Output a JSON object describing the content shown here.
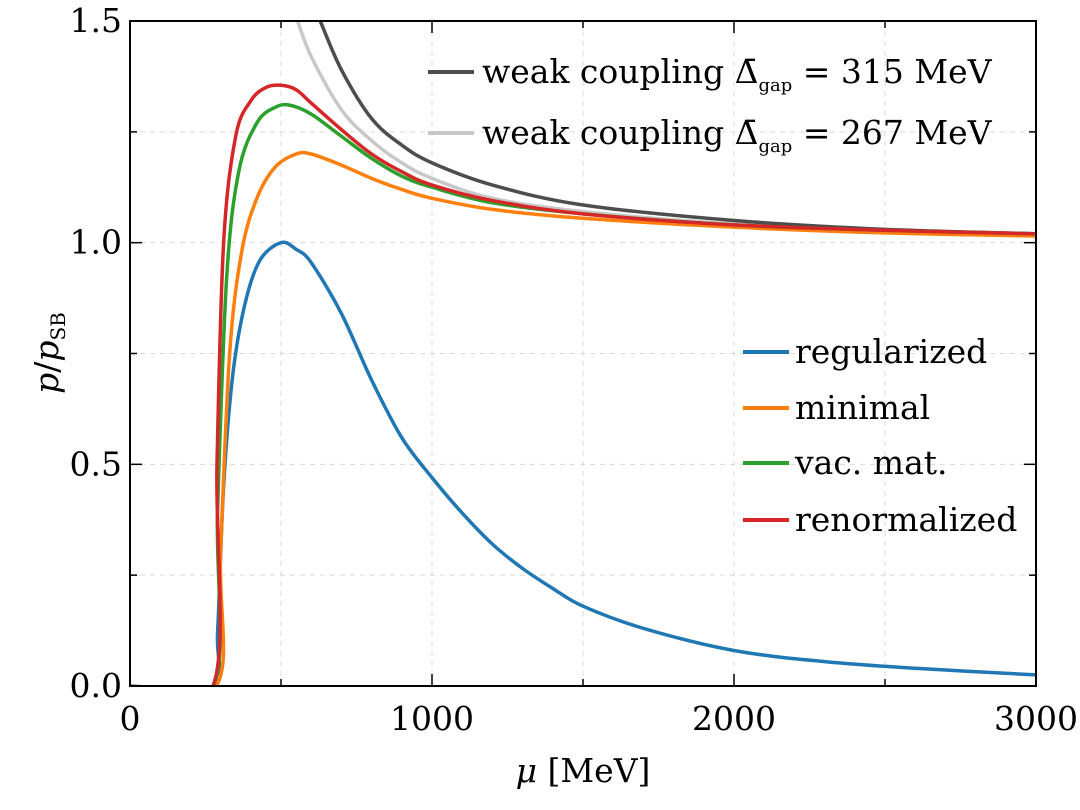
{
  "chart_data": {
    "type": "line",
    "xlabel": "μ [MeV]",
    "ylabel": "p/p_SB",
    "xlim": [
      0,
      3000
    ],
    "ylim": [
      0,
      1.5
    ],
    "xticks": [
      0,
      1000,
      2000,
      3000
    ],
    "xtick_labels": [
      "0",
      "1000",
      "2000",
      "3000"
    ],
    "yticks": [
      0.0,
      0.5,
      1.0,
      1.5
    ],
    "ytick_labels": [
      "0.0",
      "0.5",
      "1.0",
      "1.5"
    ],
    "grid": true,
    "series": [
      {
        "name": "regularized",
        "color": "#1f77b4",
        "points": [
          [
            0,
            0
          ],
          [
            275,
            0
          ],
          [
            290,
            0.12
          ],
          [
            310,
            0.45
          ],
          [
            340,
            0.7
          ],
          [
            380,
            0.86
          ],
          [
            430,
            0.96
          ],
          [
            500,
            1.0
          ],
          [
            550,
            0.985
          ],
          [
            600,
            0.955
          ],
          [
            700,
            0.84
          ],
          [
            800,
            0.69
          ],
          [
            900,
            0.56
          ],
          [
            1000,
            0.47
          ],
          [
            1100,
            0.39
          ],
          [
            1200,
            0.32
          ],
          [
            1300,
            0.265
          ],
          [
            1400,
            0.22
          ],
          [
            1500,
            0.18
          ],
          [
            1700,
            0.13
          ],
          [
            2000,
            0.08
          ],
          [
            2300,
            0.055
          ],
          [
            2600,
            0.04
          ],
          [
            3000,
            0.025
          ]
        ]
      },
      {
        "name": "minimal",
        "color": "#ff7f0e",
        "points": [
          [
            0,
            0
          ],
          [
            285,
            0
          ],
          [
            300,
            0.3
          ],
          [
            330,
            0.75
          ],
          [
            370,
            0.98
          ],
          [
            420,
            1.1
          ],
          [
            480,
            1.17
          ],
          [
            550,
            1.2
          ],
          [
            600,
            1.2
          ],
          [
            700,
            1.175
          ],
          [
            800,
            1.145
          ],
          [
            900,
            1.12
          ],
          [
            1000,
            1.1
          ],
          [
            1200,
            1.075
          ],
          [
            1500,
            1.055
          ],
          [
            2000,
            1.035
          ],
          [
            2500,
            1.022
          ],
          [
            3000,
            1.015
          ]
        ]
      },
      {
        "name": "vac. mat.",
        "color": "#2ca02c",
        "points": [
          [
            0,
            0
          ],
          [
            275,
            0
          ],
          [
            290,
            0.4
          ],
          [
            320,
            0.92
          ],
          [
            360,
            1.16
          ],
          [
            420,
            1.27
          ],
          [
            480,
            1.305
          ],
          [
            530,
            1.31
          ],
          [
            600,
            1.29
          ],
          [
            700,
            1.24
          ],
          [
            800,
            1.19
          ],
          [
            900,
            1.15
          ],
          [
            1000,
            1.125
          ],
          [
            1200,
            1.09
          ],
          [
            1500,
            1.065
          ],
          [
            2000,
            1.04
          ],
          [
            2500,
            1.028
          ],
          [
            3000,
            1.02
          ]
        ]
      },
      {
        "name": "renormalized",
        "color": "#d62728",
        "points": [
          [
            0,
            0
          ],
          [
            275,
            0
          ],
          [
            288,
            0.5
          ],
          [
            310,
            1.0
          ],
          [
            350,
            1.24
          ],
          [
            400,
            1.32
          ],
          [
            450,
            1.35
          ],
          [
            500,
            1.355
          ],
          [
            550,
            1.345
          ],
          [
            600,
            1.315
          ],
          [
            700,
            1.255
          ],
          [
            800,
            1.2
          ],
          [
            900,
            1.16
          ],
          [
            1000,
            1.13
          ],
          [
            1200,
            1.095
          ],
          [
            1500,
            1.065
          ],
          [
            2000,
            1.04
          ],
          [
            2500,
            1.028
          ],
          [
            3000,
            1.02
          ]
        ]
      },
      {
        "name": "weak coupling Δ̄gap = 315 MeV",
        "color": "#4d4d4d",
        "points": [
          [
            630,
            1.5
          ],
          [
            700,
            1.39
          ],
          [
            800,
            1.28
          ],
          [
            900,
            1.22
          ],
          [
            1000,
            1.18
          ],
          [
            1200,
            1.13
          ],
          [
            1500,
            1.085
          ],
          [
            2000,
            1.05
          ],
          [
            2500,
            1.03
          ],
          [
            3000,
            1.02
          ]
        ]
      },
      {
        "name": "weak coupling Δ̄gap = 267 MeV",
        "color": "#c8c8c8",
        "points": [
          [
            555,
            1.5
          ],
          [
            600,
            1.42
          ],
          [
            700,
            1.3
          ],
          [
            800,
            1.23
          ],
          [
            900,
            1.18
          ],
          [
            1000,
            1.145
          ],
          [
            1200,
            1.1
          ],
          [
            1500,
            1.07
          ],
          [
            2000,
            1.042
          ],
          [
            2500,
            1.027
          ],
          [
            3000,
            1.018
          ]
        ]
      }
    ],
    "legend_top": {
      "placement": "top-right",
      "entries": [
        {
          "prefix": "weak coupling ",
          "symbol": "Δ̄",
          "sub": "gap",
          "suffix": " = 315 MeV",
          "color": "#4d4d4d"
        },
        {
          "prefix": "weak coupling ",
          "symbol": "Δ̄",
          "sub": "gap",
          "suffix": " = 267 MeV",
          "color": "#c8c8c8"
        }
      ]
    },
    "legend_bottom": {
      "placement": "center-right",
      "entries": [
        {
          "label": "regularized",
          "color": "#1f77b4"
        },
        {
          "label": "minimal",
          "color": "#ff7f0e"
        },
        {
          "label": "vac. mat.",
          "color": "#2ca02c"
        },
        {
          "label": "renormalized",
          "color": "#d62728"
        }
      ]
    }
  }
}
